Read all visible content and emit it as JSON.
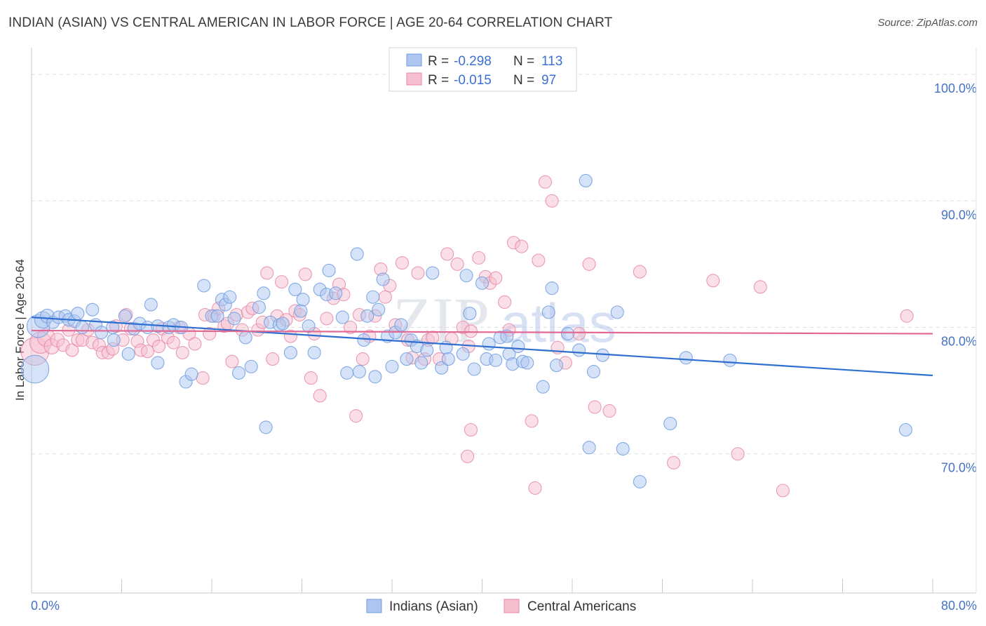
{
  "title": "INDIAN (ASIAN) VS CENTRAL AMERICAN IN LABOR FORCE | AGE 20-64 CORRELATION CHART",
  "source": "Source: ZipAtlas.com",
  "watermark": {
    "zip": "ZIP",
    "atlas": "atlas"
  },
  "colors": {
    "blue_fill": "#aec6ef",
    "blue_stroke": "#6f9ee0",
    "blue_line": "#2f6fd0",
    "pink_fill": "#f6bfd0",
    "pink_stroke": "#e88aa8",
    "pink_line": "#e06a95",
    "tick_text": "#4472c4",
    "grid": "#dddddd"
  },
  "stats_legend": [
    {
      "r_label": "R =",
      "r_value": "-0.298",
      "n_label": "N =",
      "n_value": "113"
    },
    {
      "r_label": "R =",
      "r_value": "-0.015",
      "n_label": "N =",
      "n_value": "97"
    }
  ],
  "chart_data": {
    "type": "scatter",
    "title": "INDIAN (ASIAN) VS CENTRAL AMERICAN IN LABOR FORCE | AGE 20-64 CORRELATION CHART",
    "xlabel": "",
    "ylabel": "In Labor Force | Age 20-64",
    "xlim": [
      0,
      80
    ],
    "ylim": [
      59,
      102
    ],
    "x_tick_labels": [
      "0.0%",
      "80.0%"
    ],
    "y_ticks": [
      70,
      80,
      90,
      100
    ],
    "y_tick_labels": [
      "70.0%",
      "80.0%",
      "90.0%",
      "100.0%"
    ],
    "grid": true,
    "legend_position": "bottom-center",
    "series": [
      {
        "name": "Indians (Asian)",
        "color": "#aec6ef",
        "trend": {
          "x": [
            0,
            80
          ],
          "y": [
            80.8,
            76.2
          ]
        },
        "points": [
          [
            0.3,
            76.7,
            2.2
          ],
          [
            0.6,
            80.1,
            1.8
          ],
          [
            1.0,
            80.6,
            1.3
          ],
          [
            1.4,
            80.9,
            1.1
          ],
          [
            1.9,
            80.4,
            1
          ],
          [
            2.4,
            80.8,
            1
          ],
          [
            3.0,
            80.9,
            1
          ],
          [
            3.3,
            80.6,
            1
          ],
          [
            3.8,
            80.5,
            1
          ],
          [
            4.1,
            81.1,
            1
          ],
          [
            4.5,
            80.0,
            1
          ],
          [
            5.7,
            80.2,
            1
          ],
          [
            6.2,
            79.6,
            1
          ],
          [
            7.2,
            80.0,
            1
          ],
          [
            7.3,
            79.0,
            1
          ],
          [
            8.3,
            80.9,
            1
          ],
          [
            9.1,
            79.9,
            1
          ],
          [
            9.6,
            80.3,
            1
          ],
          [
            10.3,
            80.0,
            1
          ],
          [
            11.2,
            80.1,
            1
          ],
          [
            12.2,
            80.0,
            1
          ],
          [
            5.4,
            81.4,
            1
          ],
          [
            8.6,
            77.9,
            1
          ],
          [
            10.6,
            81.8,
            1
          ],
          [
            11.2,
            77.2,
            1
          ],
          [
            12.6,
            80.2,
            1
          ],
          [
            13.3,
            80.0,
            1
          ],
          [
            13.7,
            75.7,
            1
          ],
          [
            14.2,
            76.3,
            1
          ],
          [
            15.3,
            83.3,
            1
          ],
          [
            16.0,
            80.9,
            1
          ],
          [
            16.5,
            80.9,
            1
          ],
          [
            16.9,
            82.2,
            1
          ],
          [
            17.2,
            81.8,
            1
          ],
          [
            17.6,
            82.4,
            1
          ],
          [
            18.0,
            80.7,
            1
          ],
          [
            18.4,
            76.4,
            1
          ],
          [
            19.0,
            79.2,
            1
          ],
          [
            19.5,
            76.9,
            1
          ],
          [
            20.2,
            81.6,
            1
          ],
          [
            20.6,
            82.7,
            1
          ],
          [
            20.8,
            72.1,
            1
          ],
          [
            21.2,
            80.4,
            1
          ],
          [
            22.0,
            80.2,
            1
          ],
          [
            22.3,
            80.3,
            1
          ],
          [
            23.0,
            78.0,
            1
          ],
          [
            23.4,
            83.0,
            1
          ],
          [
            23.9,
            81.3,
            1
          ],
          [
            24.1,
            82.2,
            1
          ],
          [
            24.6,
            80.1,
            1
          ],
          [
            25.1,
            78.0,
            1
          ],
          [
            25.6,
            83.0,
            1
          ],
          [
            26.2,
            82.6,
            1
          ],
          [
            26.4,
            84.5,
            1
          ],
          [
            27.0,
            82.7,
            1
          ],
          [
            27.6,
            80.8,
            1
          ],
          [
            28.0,
            76.4,
            1
          ],
          [
            28.9,
            85.8,
            1
          ],
          [
            29.1,
            76.5,
            1
          ],
          [
            29.5,
            79.0,
            1
          ],
          [
            29.8,
            80.9,
            1
          ],
          [
            30.3,
            82.4,
            1
          ],
          [
            30.5,
            76.1,
            1
          ],
          [
            30.8,
            81.4,
            1
          ],
          [
            31.2,
            83.8,
            1
          ],
          [
            31.6,
            79.3,
            1
          ],
          [
            32.0,
            76.9,
            1
          ],
          [
            32.3,
            79.6,
            1
          ],
          [
            32.8,
            80.2,
            1
          ],
          [
            33.3,
            77.5,
            1
          ],
          [
            33.7,
            79.0,
            1
          ],
          [
            34.2,
            78.5,
            1
          ],
          [
            34.6,
            77.2,
            1
          ],
          [
            35.1,
            78.2,
            1
          ],
          [
            35.6,
            84.3,
            1
          ],
          [
            36.4,
            76.8,
            1
          ],
          [
            36.8,
            78.4,
            1
          ],
          [
            37.0,
            77.5,
            1
          ],
          [
            38.3,
            77.9,
            1
          ],
          [
            38.6,
            84.1,
            1
          ],
          [
            38.9,
            81.1,
            1
          ],
          [
            39.3,
            76.7,
            1
          ],
          [
            40.0,
            83.5,
            1
          ],
          [
            40.4,
            77.5,
            1
          ],
          [
            40.6,
            78.7,
            1
          ],
          [
            41.2,
            77.4,
            1
          ],
          [
            41.6,
            79.2,
            1
          ],
          [
            42.2,
            79.3,
            1
          ],
          [
            42.4,
            77.9,
            1
          ],
          [
            42.7,
            77.1,
            1
          ],
          [
            43.2,
            78.5,
            1
          ],
          [
            43.6,
            77.3,
            1
          ],
          [
            44.0,
            77.2,
            1
          ],
          [
            45.4,
            75.3,
            1
          ],
          [
            45.9,
            81.2,
            1
          ],
          [
            46.2,
            83.1,
            1
          ],
          [
            46.6,
            77.0,
            1
          ],
          [
            47.6,
            79.5,
            1
          ],
          [
            48.6,
            78.2,
            1
          ],
          [
            49.2,
            91.6,
            1
          ],
          [
            49.5,
            70.5,
            1
          ],
          [
            49.9,
            76.5,
            1
          ],
          [
            50.7,
            77.8,
            1
          ],
          [
            52.0,
            81.2,
            1
          ],
          [
            52.5,
            70.4,
            1
          ],
          [
            54.0,
            67.8,
            1
          ],
          [
            56.7,
            72.4,
            1
          ],
          [
            58.1,
            77.6,
            1
          ],
          [
            62.0,
            77.4,
            1
          ],
          [
            77.6,
            71.9,
            1
          ]
        ]
      },
      {
        "name": "Central Americans",
        "color": "#f6bfd0",
        "trend": {
          "x": [
            0,
            80
          ],
          "y": [
            79.75,
            79.5
          ]
        },
        "points": [
          [
            0.3,
            78.1,
            2.2
          ],
          [
            0.8,
            78.8,
            1.7
          ],
          [
            1.3,
            79.2,
            1.4
          ],
          [
            1.8,
            78.5,
            1.2
          ],
          [
            2.3,
            79.0,
            1.1
          ],
          [
            2.8,
            78.6,
            1
          ],
          [
            3.3,
            79.8,
            1
          ],
          [
            3.6,
            78.2,
            1
          ],
          [
            4.1,
            79.0,
            1
          ],
          [
            4.5,
            79.0,
            1
          ],
          [
            5.0,
            79.8,
            1
          ],
          [
            5.4,
            78.8,
            1
          ],
          [
            6.0,
            78.6,
            1
          ],
          [
            6.3,
            78.0,
            1
          ],
          [
            6.8,
            78.0,
            1
          ],
          [
            7.2,
            78.3,
            1
          ],
          [
            7.5,
            80.1,
            1
          ],
          [
            8.1,
            79.0,
            1
          ],
          [
            8.4,
            81.0,
            1
          ],
          [
            8.8,
            79.9,
            1
          ],
          [
            9.4,
            78.9,
            1
          ],
          [
            9.7,
            78.2,
            1
          ],
          [
            10.3,
            78.1,
            1
          ],
          [
            10.8,
            79.0,
            1
          ],
          [
            11.3,
            78.5,
            1
          ],
          [
            11.6,
            79.9,
            1
          ],
          [
            12.1,
            79.2,
            1
          ],
          [
            12.6,
            78.8,
            1
          ],
          [
            13.1,
            80.0,
            1
          ],
          [
            13.4,
            78.0,
            1
          ],
          [
            14.0,
            79.5,
            1
          ],
          [
            14.5,
            78.7,
            1
          ],
          [
            15.2,
            76.0,
            1
          ],
          [
            15.4,
            81.0,
            1
          ],
          [
            15.8,
            79.5,
            1
          ],
          [
            16.2,
            80.9,
            1
          ],
          [
            16.6,
            81.5,
            1
          ],
          [
            17.1,
            80.1,
            1
          ],
          [
            17.4,
            80.3,
            1
          ],
          [
            17.8,
            77.3,
            1
          ],
          [
            18.2,
            81.0,
            1
          ],
          [
            18.7,
            79.8,
            1
          ],
          [
            19.2,
            81.2,
            1
          ],
          [
            19.6,
            81.5,
            1
          ],
          [
            20.1,
            79.8,
            1
          ],
          [
            20.5,
            80.4,
            1
          ],
          [
            20.9,
            84.3,
            1
          ],
          [
            21.4,
            77.5,
            1
          ],
          [
            21.8,
            80.9,
            1
          ],
          [
            22.2,
            83.6,
            1
          ],
          [
            22.6,
            80.6,
            1
          ],
          [
            23.0,
            79.3,
            1
          ],
          [
            23.4,
            81.3,
            1
          ],
          [
            23.8,
            81.0,
            1
          ],
          [
            24.3,
            84.2,
            1
          ],
          [
            24.8,
            76.0,
            1
          ],
          [
            25.1,
            79.5,
            1
          ],
          [
            25.6,
            74.6,
            1
          ],
          [
            26.2,
            80.7,
            1
          ],
          [
            26.8,
            82.3,
            1
          ],
          [
            27.3,
            83.4,
            1
          ],
          [
            27.7,
            82.6,
            1
          ],
          [
            28.3,
            80.0,
            1
          ],
          [
            28.8,
            73.0,
            1
          ],
          [
            29.1,
            81.0,
            1
          ],
          [
            29.4,
            77.5,
            1
          ],
          [
            30.0,
            79.3,
            1
          ],
          [
            30.5,
            80.9,
            1
          ],
          [
            31.0,
            84.6,
            1
          ],
          [
            31.4,
            82.4,
            1
          ],
          [
            31.8,
            83.3,
            1
          ],
          [
            32.3,
            80.2,
            1
          ],
          [
            32.9,
            85.1,
            1
          ],
          [
            33.4,
            79.0,
            1
          ],
          [
            33.8,
            77.6,
            1
          ],
          [
            34.3,
            84.3,
            1
          ],
          [
            34.9,
            77.5,
            1
          ],
          [
            35.2,
            79.0,
            1
          ],
          [
            35.6,
            79.2,
            1
          ],
          [
            36.2,
            77.5,
            1
          ],
          [
            36.9,
            85.8,
            1
          ],
          [
            37.3,
            79.1,
            1
          ],
          [
            37.8,
            85.0,
            1
          ],
          [
            38.3,
            80.0,
            1
          ],
          [
            38.8,
            78.5,
            1
          ],
          [
            39.0,
            79.7,
            1
          ],
          [
            39.7,
            85.5,
            1
          ],
          [
            40.3,
            84.0,
            1
          ],
          [
            40.7,
            83.5,
            1
          ],
          [
            41.2,
            83.9,
            1
          ],
          [
            42.0,
            82.0,
            1
          ],
          [
            42.4,
            79.8,
            1
          ],
          [
            42.8,
            86.7,
            1
          ],
          [
            43.5,
            86.4,
            1
          ],
          [
            44.4,
            72.6,
            1
          ],
          [
            45.0,
            85.3,
            1
          ],
          [
            46.7,
            78.4,
            1
          ],
          [
            47.4,
            77.2,
            1
          ],
          [
            48.6,
            79.5,
            1
          ],
          [
            49.5,
            85.0,
            1
          ],
          [
            50.0,
            73.7,
            1
          ],
          [
            51.3,
            73.4,
            1
          ],
          [
            44.7,
            67.3,
            1
          ],
          [
            45.6,
            91.5,
            1
          ],
          [
            46.2,
            90.0,
            1
          ],
          [
            39.0,
            71.9,
            1
          ],
          [
            38.7,
            69.8,
            1
          ],
          [
            54.0,
            84.4,
            1
          ],
          [
            57.0,
            69.3,
            1
          ],
          [
            60.5,
            83.7,
            1
          ],
          [
            62.7,
            70.0,
            1
          ],
          [
            64.7,
            83.2,
            1
          ],
          [
            66.7,
            67.1,
            1
          ],
          [
            77.7,
            80.9,
            1
          ]
        ]
      }
    ]
  }
}
